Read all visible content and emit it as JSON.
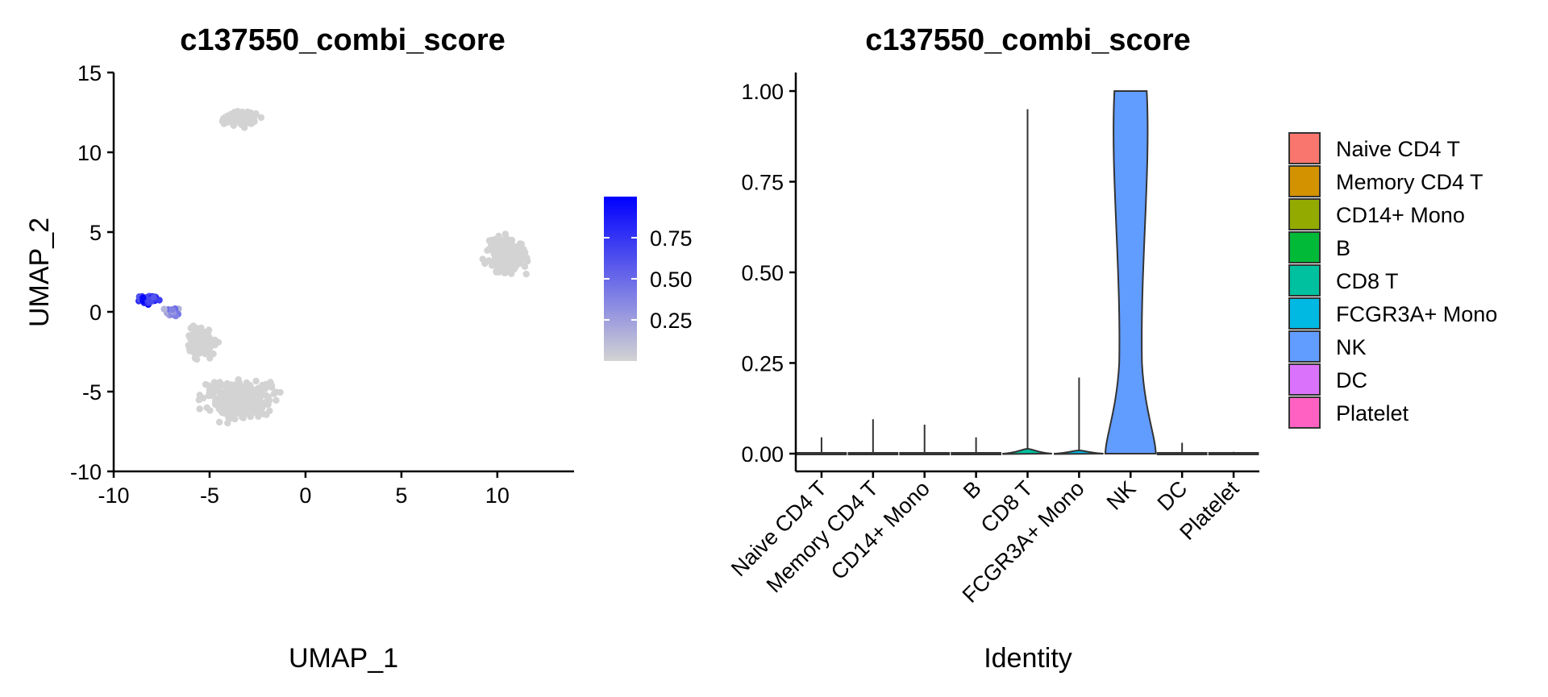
{
  "chart_data": [
    {
      "type": "scatter",
      "title": "c137550_combi_score",
      "xlabel": "UMAP_1",
      "ylabel": "UMAP_2",
      "xlim": [
        -10,
        14
      ],
      "ylim": [
        -10,
        15
      ],
      "xticks": [
        "-10",
        "-5",
        "0",
        "5",
        "10"
      ],
      "yticks": [
        "-10",
        "-5",
        "0",
        "5",
        "10",
        "15"
      ],
      "grid": false,
      "color_scale": {
        "low_color": "#d3d3d3",
        "high_color": "#0000ff",
        "range": [
          0,
          1
        ],
        "ticks": [
          "0.25",
          "0.50",
          "0.75"
        ]
      },
      "clusters": [
        {
          "center": [
            -3.5,
            12.1
          ],
          "spread": [
            2.0,
            0.8
          ],
          "n": 160,
          "value": 0
        },
        {
          "center": [
            10.5,
            3.5
          ],
          "spread": [
            2.2,
            2.2
          ],
          "n": 220,
          "value": 0
        },
        {
          "center": [
            -3.5,
            -5.5
          ],
          "spread": [
            3.4,
            2.4
          ],
          "n": 420,
          "value": 0
        },
        {
          "center": [
            -5.5,
            -2.0
          ],
          "spread": [
            1.5,
            1.8
          ],
          "n": 120,
          "value": 0
        },
        {
          "center": [
            -8.2,
            0.8
          ],
          "spread": [
            0.9,
            0.5
          ],
          "n": 70,
          "value": 0.8
        },
        {
          "center": [
            -7.0,
            0.0
          ],
          "spread": [
            0.8,
            0.6
          ],
          "n": 30,
          "value": 0.3
        }
      ]
    },
    {
      "type": "violin",
      "title": "c137550_combi_score",
      "xlabel": "Identity",
      "ylabel": "",
      "ylim": [
        0,
        1
      ],
      "yticks": [
        "0.00",
        "0.25",
        "0.50",
        "0.75",
        "1.00"
      ],
      "categories": [
        "Naive CD4 T",
        "Memory CD4 T",
        "CD14+ Mono",
        "B",
        "CD8 T",
        "FCGR3A+ Mono",
        "NK",
        "DC",
        "Platelet"
      ],
      "colors": [
        "#F8766D",
        "#D39200",
        "#93AA00",
        "#00BA38",
        "#00C19F",
        "#00B9E3",
        "#619CFF",
        "#DB72FB",
        "#FF61C3"
      ],
      "max_values": [
        0.045,
        0.095,
        0.08,
        0.045,
        0.95,
        0.21,
        1.0,
        0.03,
        0.005
      ],
      "legend": {
        "position": "right",
        "labels": [
          "Naive CD4 T",
          "Memory CD4 T",
          "CD14+ Mono",
          "B",
          "CD8 T",
          "FCGR3A+ Mono",
          "NK",
          "DC",
          "Platelet"
        ]
      }
    }
  ]
}
